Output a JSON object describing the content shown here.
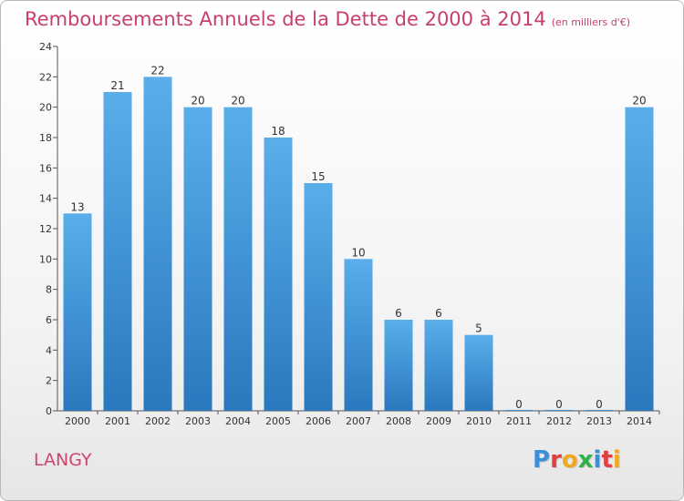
{
  "title": "Remboursements Annuels de la Dette de 2000 à 2014",
  "unit_note": "(en milliers d'€)",
  "commune": "LANGY",
  "logo": {
    "letters": [
      "P",
      "r",
      "o",
      "x",
      "i",
      "t",
      "i"
    ],
    "colors": [
      "#3a8fd8",
      "#e23f3f",
      "#f0a81c",
      "#2fb24a",
      "#3a8fd8",
      "#e23f3f",
      "#f0a81c"
    ]
  },
  "colors": {
    "title": "#c8406a",
    "bar_top": "#5aaeea",
    "bar_bottom": "#2a78bd"
  },
  "chart_data": {
    "type": "bar",
    "categories": [
      "2000",
      "2001",
      "2002",
      "2003",
      "2004",
      "2005",
      "2006",
      "2007",
      "2008",
      "2009",
      "2010",
      "2011",
      "2012",
      "2013",
      "2014"
    ],
    "values": [
      13,
      21,
      22,
      20,
      20,
      18,
      15,
      10,
      6,
      6,
      5,
      0,
      0,
      0,
      20
    ],
    "data_labels": [
      "13",
      "21",
      "22",
      "20",
      "20",
      "18",
      "15",
      "10",
      "6",
      "6",
      "5",
      "0",
      "0",
      "0",
      "20"
    ],
    "title": "Remboursements Annuels de la Dette de 2000 à 2014",
    "xlabel": "",
    "ylabel": "",
    "ylim": [
      0,
      24
    ],
    "yticks": [
      0,
      2,
      4,
      6,
      8,
      10,
      12,
      14,
      16,
      18,
      20,
      22,
      24
    ],
    "grid": false,
    "legend": "none"
  }
}
